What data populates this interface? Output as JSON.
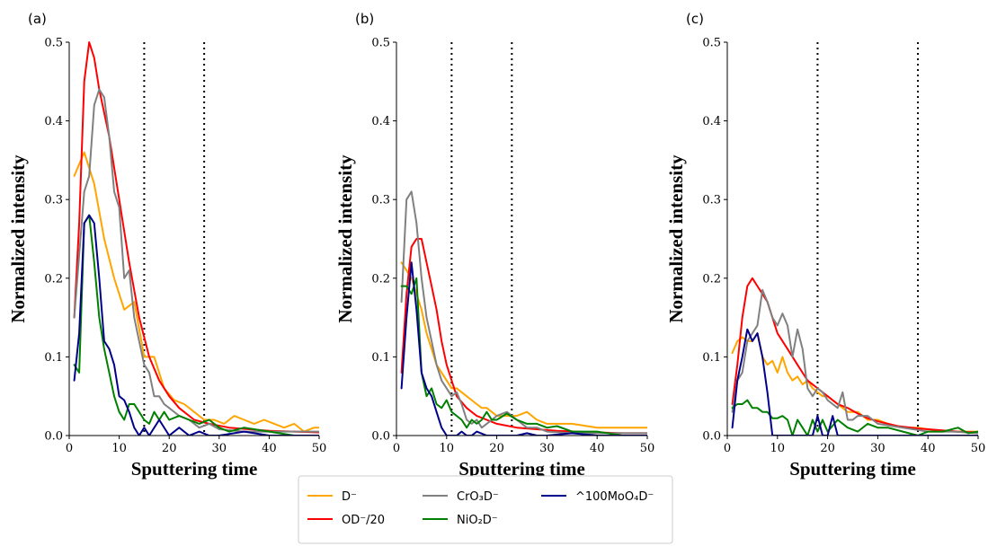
{
  "chart_data": [
    {
      "type": "line",
      "panel_label": "(a)",
      "xlabel": "Sputtering time",
      "ylabel": "Normalized intensity",
      "xlim": [
        0,
        50
      ],
      "ylim": [
        0,
        0.5
      ],
      "xticks": [
        "0",
        "10",
        "20",
        "30",
        "40",
        "50"
      ],
      "yticks": [
        "0.0",
        "0.1",
        "0.2",
        "0.3",
        "0.4",
        "0.5"
      ],
      "vlines": [
        15,
        27
      ],
      "series": [
        {
          "name": "D⁻",
          "color": "#ffa500",
          "x": [
            1,
            3,
            5,
            7,
            9,
            11,
            13,
            15,
            17,
            19,
            21,
            23,
            25,
            27,
            29,
            31,
            33,
            35,
            37,
            39,
            41,
            43,
            45,
            47,
            49,
            50
          ],
          "y": [
            0.33,
            0.36,
            0.32,
            0.25,
            0.2,
            0.16,
            0.17,
            0.1,
            0.1,
            0.06,
            0.045,
            0.04,
            0.03,
            0.02,
            0.02,
            0.015,
            0.025,
            0.02,
            0.015,
            0.02,
            0.015,
            0.01,
            0.015,
            0.005,
            0.01,
            0.01
          ]
        },
        {
          "name": "OD⁻/20",
          "color": "#ff0000",
          "x": [
            1,
            2,
            3,
            4,
            5,
            6,
            8,
            10,
            12,
            14,
            16,
            18,
            20,
            22,
            25,
            28,
            32,
            36,
            40,
            45,
            50
          ],
          "y": [
            0.15,
            0.27,
            0.45,
            0.5,
            0.48,
            0.44,
            0.38,
            0.3,
            0.22,
            0.15,
            0.1,
            0.07,
            0.05,
            0.035,
            0.02,
            0.015,
            0.01,
            0.008,
            0.006,
            0.005,
            0.004
          ]
        },
        {
          "name": "CrO₃D⁻",
          "color": "#808080",
          "x": [
            1,
            2,
            3,
            4,
            5,
            6,
            7,
            8,
            9,
            10,
            11,
            12,
            13,
            14,
            15,
            16,
            17,
            18,
            19,
            20,
            22,
            24,
            26,
            28,
            30,
            35,
            40,
            45,
            50
          ],
          "y": [
            0.15,
            0.23,
            0.31,
            0.33,
            0.42,
            0.44,
            0.43,
            0.38,
            0.31,
            0.29,
            0.2,
            0.21,
            0.15,
            0.12,
            0.09,
            0.08,
            0.05,
            0.05,
            0.04,
            0.035,
            0.025,
            0.02,
            0.01,
            0.015,
            0.008,
            0.005,
            0.005,
            0.005,
            0.005
          ]
        },
        {
          "name": "NiO₂D⁻",
          "color": "#008000",
          "x": [
            1,
            2,
            3,
            4,
            5,
            6,
            7,
            8,
            9,
            10,
            11,
            12,
            13,
            14,
            15,
            16,
            17,
            18,
            19,
            20,
            22,
            24,
            26,
            28,
            30,
            32,
            35,
            40,
            45,
            50
          ],
          "y": [
            0.09,
            0.08,
            0.27,
            0.28,
            0.22,
            0.15,
            0.11,
            0.08,
            0.05,
            0.03,
            0.02,
            0.04,
            0.04,
            0.03,
            0.02,
            0.015,
            0.03,
            0.02,
            0.03,
            0.02,
            0.025,
            0.02,
            0.015,
            0.02,
            0.01,
            0.005,
            0.01,
            0.005,
            0.0,
            0.0
          ]
        },
        {
          "name": "^100MoO₄D⁻",
          "color": "#00008b",
          "x": [
            1,
            2,
            3,
            4,
            5,
            6,
            7,
            8,
            9,
            10,
            11,
            12,
            13,
            14,
            15,
            16,
            18,
            20,
            22,
            24,
            26,
            28,
            30,
            35,
            40,
            45,
            50
          ],
          "y": [
            0.07,
            0.13,
            0.27,
            0.28,
            0.27,
            0.2,
            0.12,
            0.11,
            0.09,
            0.05,
            0.045,
            0.03,
            0.01,
            0.0,
            0.01,
            0.0,
            0.02,
            0.0,
            0.01,
            0.0,
            0.005,
            0.0,
            0.0,
            0.005,
            0.0,
            0.0,
            0.0
          ]
        }
      ]
    },
    {
      "type": "line",
      "panel_label": "(b)",
      "xlabel": "Sputtering time",
      "ylabel": "Normalized intensity",
      "xlim": [
        0,
        50
      ],
      "ylim": [
        0,
        0.5
      ],
      "xticks": [
        "0",
        "10",
        "20",
        "30",
        "40",
        "50"
      ],
      "yticks": [
        "0.0",
        "0.1",
        "0.2",
        "0.3",
        "0.4",
        "0.5"
      ],
      "vlines": [
        11,
        23
      ],
      "series": [
        {
          "name": "D⁻",
          "color": "#ffa500",
          "x": [
            1,
            2,
            3,
            4,
            5,
            6,
            7,
            8,
            9,
            10,
            11,
            12,
            13,
            14,
            15,
            16,
            17,
            18,
            19,
            20,
            22,
            24,
            26,
            28,
            30,
            32,
            35,
            40,
            45,
            50
          ],
          "y": [
            0.22,
            0.21,
            0.2,
            0.18,
            0.16,
            0.13,
            0.11,
            0.09,
            0.08,
            0.07,
            0.06,
            0.06,
            0.055,
            0.05,
            0.045,
            0.04,
            0.035,
            0.035,
            0.03,
            0.025,
            0.025,
            0.025,
            0.03,
            0.02,
            0.015,
            0.015,
            0.015,
            0.01,
            0.01,
            0.01
          ]
        },
        {
          "name": "OD⁻/20",
          "color": "#ff0000",
          "x": [
            1,
            2,
            3,
            4,
            5,
            6,
            7,
            8,
            9,
            10,
            11,
            12,
            14,
            16,
            18,
            20,
            24,
            28,
            32,
            36,
            40,
            45,
            50
          ],
          "y": [
            0.08,
            0.18,
            0.24,
            0.25,
            0.25,
            0.22,
            0.19,
            0.16,
            0.12,
            0.09,
            0.07,
            0.05,
            0.035,
            0.025,
            0.02,
            0.015,
            0.01,
            0.008,
            0.006,
            0.005,
            0.004,
            0.003,
            0.003
          ]
        },
        {
          "name": "CrO₃D⁻",
          "color": "#808080",
          "x": [
            1,
            2,
            3,
            4,
            5,
            6,
            7,
            8,
            9,
            10,
            11,
            12,
            13,
            14,
            15,
            16,
            17,
            18,
            19,
            20,
            22,
            24,
            26,
            28,
            30,
            35,
            40,
            45,
            50
          ],
          "y": [
            0.17,
            0.3,
            0.31,
            0.27,
            0.2,
            0.15,
            0.12,
            0.09,
            0.07,
            0.06,
            0.05,
            0.055,
            0.04,
            0.02,
            0.015,
            0.02,
            0.01,
            0.015,
            0.02,
            0.025,
            0.03,
            0.02,
            0.01,
            0.01,
            0.005,
            0.003,
            0.003,
            0.003,
            0.003
          ]
        },
        {
          "name": "NiO₂D⁻",
          "color": "#008000",
          "x": [
            1,
            2,
            3,
            4,
            5,
            6,
            7,
            8,
            9,
            10,
            11,
            12,
            13,
            14,
            15,
            16,
            17,
            18,
            19,
            20,
            22,
            24,
            26,
            28,
            30,
            32,
            35,
            40,
            45,
            50
          ],
          "y": [
            0.19,
            0.19,
            0.18,
            0.2,
            0.08,
            0.05,
            0.06,
            0.04,
            0.035,
            0.045,
            0.03,
            0.025,
            0.02,
            0.01,
            0.02,
            0.015,
            0.02,
            0.03,
            0.02,
            0.02,
            0.028,
            0.02,
            0.015,
            0.015,
            0.01,
            0.012,
            0.005,
            0.005,
            0.0,
            0.0
          ]
        },
        {
          "name": "^100MoO₄D⁻",
          "color": "#00008b",
          "x": [
            1,
            2,
            3,
            4,
            5,
            6,
            7,
            8,
            9,
            10,
            11,
            12,
            13,
            14,
            15,
            16,
            18,
            20,
            22,
            24,
            26,
            28,
            30,
            35,
            40,
            45,
            50
          ],
          "y": [
            0.06,
            0.15,
            0.22,
            0.16,
            0.08,
            0.06,
            0.05,
            0.03,
            0.01,
            0.0,
            0.0,
            0.0,
            0.005,
            0.0,
            0.0,
            0.005,
            0.0,
            0.0,
            0.0,
            0.0,
            0.003,
            0.0,
            0.0,
            0.003,
            0.0,
            0.0,
            0.0
          ]
        }
      ]
    },
    {
      "type": "line",
      "panel_label": "(c)",
      "xlabel": "Sputtering time",
      "ylabel": "Normalized intensity",
      "xlim": [
        0,
        50
      ],
      "ylim": [
        0,
        0.5
      ],
      "xticks": [
        "0",
        "10",
        "20",
        "30",
        "40",
        "50"
      ],
      "yticks": [
        "0.0",
        "0.1",
        "0.2",
        "0.3",
        "0.4",
        "0.5"
      ],
      "vlines": [
        18,
        38
      ],
      "series": [
        {
          "name": "D⁻",
          "color": "#ffa500",
          "x": [
            1,
            2,
            3,
            4,
            5,
            6,
            7,
            8,
            9,
            10,
            11,
            12,
            13,
            14,
            15,
            16,
            17,
            18,
            19,
            20,
            22,
            24,
            26,
            28,
            30,
            32,
            35,
            38,
            40,
            45,
            50
          ],
          "y": [
            0.105,
            0.12,
            0.125,
            0.12,
            0.12,
            0.13,
            0.1,
            0.09,
            0.095,
            0.08,
            0.1,
            0.08,
            0.07,
            0.075,
            0.065,
            0.07,
            0.06,
            0.055,
            0.05,
            0.05,
            0.04,
            0.03,
            0.03,
            0.02,
            0.02,
            0.015,
            0.01,
            0.01,
            0.008,
            0.005,
            0.005
          ]
        },
        {
          "name": "OD⁻/20",
          "color": "#ff0000",
          "x": [
            1,
            2,
            3,
            4,
            5,
            6,
            7,
            8,
            9,
            10,
            12,
            14,
            16,
            18,
            20,
            22,
            24,
            26,
            28,
            30,
            34,
            38,
            42,
            46,
            50
          ],
          "y": [
            0.04,
            0.09,
            0.15,
            0.19,
            0.2,
            0.19,
            0.18,
            0.17,
            0.15,
            0.13,
            0.11,
            0.09,
            0.07,
            0.06,
            0.05,
            0.04,
            0.035,
            0.028,
            0.022,
            0.018,
            0.012,
            0.009,
            0.007,
            0.005,
            0.004
          ]
        },
        {
          "name": "CrO₃D⁻",
          "color": "#808080",
          "x": [
            1,
            2,
            3,
            4,
            5,
            6,
            7,
            8,
            9,
            10,
            11,
            12,
            13,
            14,
            15,
            16,
            17,
            18,
            19,
            20,
            21,
            22,
            23,
            24,
            25,
            26,
            28,
            30,
            35,
            40,
            45,
            50
          ],
          "y": [
            0.03,
            0.07,
            0.08,
            0.12,
            0.13,
            0.14,
            0.185,
            0.17,
            0.15,
            0.14,
            0.155,
            0.14,
            0.1,
            0.135,
            0.11,
            0.06,
            0.05,
            0.06,
            0.055,
            0.045,
            0.04,
            0.035,
            0.055,
            0.02,
            0.02,
            0.025,
            0.025,
            0.015,
            0.01,
            0.005,
            0.005,
            0.003
          ]
        },
        {
          "name": "NiO₂D⁻",
          "color": "#008000",
          "x": [
            1,
            2,
            3,
            4,
            5,
            6,
            7,
            8,
            9,
            10,
            11,
            12,
            13,
            14,
            15,
            16,
            17,
            18,
            19,
            20,
            22,
            24,
            26,
            28,
            30,
            32,
            35,
            38,
            40,
            43,
            46,
            48,
            50
          ],
          "y": [
            0.035,
            0.04,
            0.04,
            0.045,
            0.035,
            0.035,
            0.03,
            0.03,
            0.022,
            0.022,
            0.025,
            0.02,
            0.0,
            0.02,
            0.01,
            0.0,
            0.02,
            0.005,
            0.02,
            0.005,
            0.02,
            0.01,
            0.005,
            0.015,
            0.01,
            0.01,
            0.005,
            0.0,
            0.005,
            0.005,
            0.01,
            0.003,
            0.005
          ]
        },
        {
          "name": "^100MoO₄D⁻",
          "color": "#00008b",
          "x": [
            1,
            2,
            3,
            4,
            5,
            6,
            7,
            8,
            9,
            10,
            11,
            12,
            13,
            14,
            15,
            16,
            17,
            18,
            19,
            20,
            21,
            22,
            24,
            26,
            28,
            30,
            35,
            40,
            45,
            50
          ],
          "y": [
            0.01,
            0.07,
            0.1,
            0.135,
            0.12,
            0.13,
            0.1,
            0.055,
            0.0,
            0.0,
            0.0,
            0.0,
            0.0,
            0.0,
            0.0,
            0.0,
            0.0,
            0.025,
            0.0,
            0.0,
            0.025,
            0.0,
            0.0,
            0.0,
            0.0,
            0.0,
            0.0,
            0.0,
            0.0,
            0.0
          ]
        }
      ]
    }
  ],
  "legend": {
    "placement": "bottom-center",
    "items": [
      {
        "label": "D⁻",
        "color": "#ffa500"
      },
      {
        "label": "OD⁻/20",
        "color": "#ff0000"
      },
      {
        "label": "CrO₃D⁻",
        "color": "#808080"
      },
      {
        "label": "NiO₂D⁻",
        "color": "#008000"
      },
      {
        "label": "^100MoO₄D⁻",
        "color": "#00008b"
      }
    ]
  }
}
